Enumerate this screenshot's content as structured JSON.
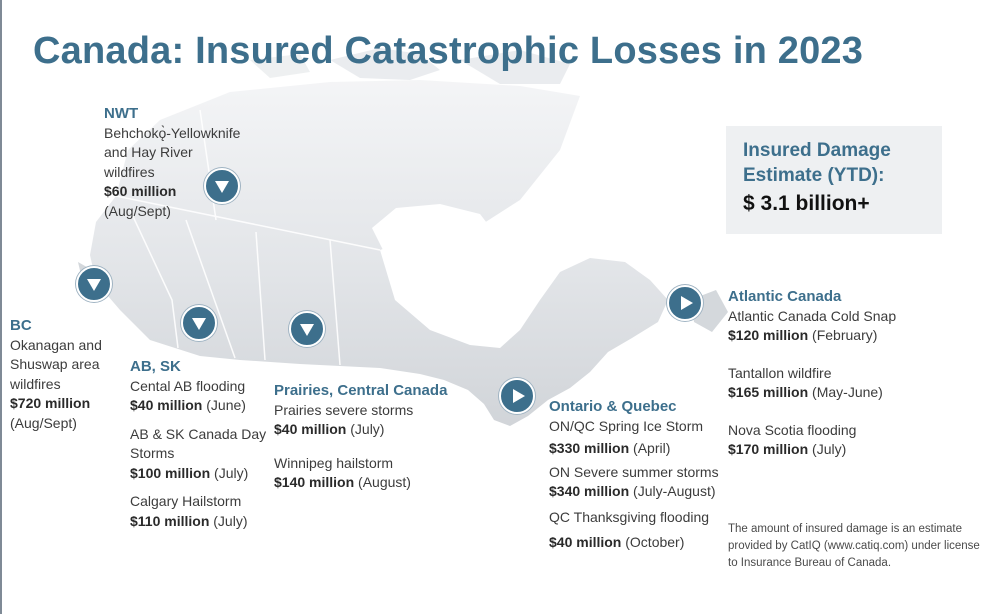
{
  "title": "Canada: Insured Catastrophic Losses in 2023",
  "summary": {
    "label": "Insured Damage Estimate (YTD):",
    "value": "$ 3.1 billion+"
  },
  "regions": {
    "nwt": {
      "name": "NWT",
      "events": [
        {
          "name": "Behchokǫ̀-Yellowknife and Hay River wildfires",
          "amount": "$60 million",
          "period": "(Aug/Sept)"
        }
      ]
    },
    "bc": {
      "name": "BC",
      "events": [
        {
          "name": "Okanagan and Shuswap area wildfires",
          "amount": "$720 million",
          "period": "(Aug/Sept)"
        }
      ]
    },
    "ab_sk": {
      "name": "AB, SK",
      "events": [
        {
          "name": "Cental AB flooding",
          "amount": "$40 million",
          "period": "(June)"
        },
        {
          "name": "AB & SK Canada Day Storms",
          "amount": "$100 million",
          "period": "(July)"
        },
        {
          "name": "Calgary Hailstorm",
          "amount": "$110 million",
          "period": "(July)"
        }
      ]
    },
    "prairies": {
      "name": "Prairies,  Central Canada",
      "events": [
        {
          "name": "Prairies severe storms",
          "amount": "$40 million",
          "period": "(July)"
        },
        {
          "name": "Winnipeg hailstorm",
          "amount": "$140 million",
          "period": "(August)"
        }
      ]
    },
    "ontario_quebec": {
      "name": "Ontario  & Quebec",
      "events": [
        {
          "name": "ON/QC Spring Ice Storm",
          "amount": "$330 million",
          "period": "(April)"
        },
        {
          "name": "ON Severe summer storms",
          "amount": "$340 million",
          "period": "(July-August)"
        },
        {
          "name": "QC Thanksgiving flooding",
          "amount": "$40 million",
          "period": "(October)"
        }
      ]
    },
    "atlantic": {
      "name": "Atlantic  Canada",
      "events": [
        {
          "name": "Atlantic Canada Cold Snap",
          "amount": "$120 million",
          "period": "(February)"
        },
        {
          "name": "Tantallon wildfire",
          "amount": "$165 million",
          "period": "(May-June)"
        },
        {
          "name": "Nova Scotia flooding",
          "amount": "$170 million",
          "period": "(July)"
        }
      ]
    }
  },
  "footnote": "The amount of insured damage is an estimate provided by CatIQ (www.catiq.com)  under license to Insurance Bureau of Canada.",
  "icons": {
    "marker_down": "triangle-down-icon",
    "marker_right": "triangle-right-icon"
  },
  "colors": {
    "accent": "#3d6f8c",
    "summary_bg": "#eef0f2",
    "map_land": "#dcdfe3"
  }
}
